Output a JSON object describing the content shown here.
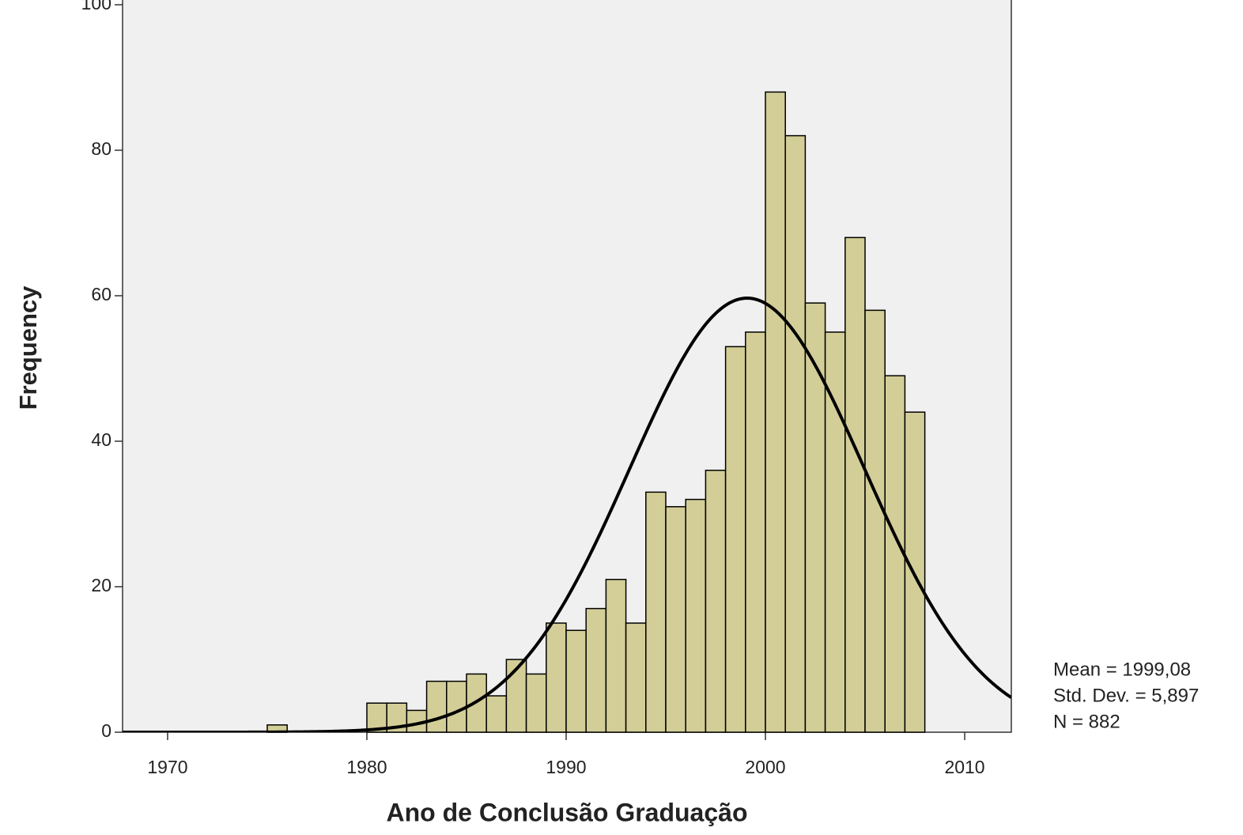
{
  "chart_data": {
    "type": "histogram",
    "xlabel": "Ano de Conclusão Graduação",
    "ylabel": "Frequency",
    "bins": [
      1975,
      1976,
      1977,
      1978,
      1979,
      1980,
      1981,
      1982,
      1983,
      1984,
      1985,
      1986,
      1987,
      1988,
      1989,
      1990,
      1991,
      1992,
      1993,
      1994,
      1995,
      1996,
      1997,
      1998,
      1999,
      2000,
      2001,
      2002,
      2003,
      2004,
      2005,
      2006,
      2007,
      2008
    ],
    "counts": [
      1,
      0,
      0,
      0,
      0,
      4,
      4,
      3,
      7,
      7,
      8,
      5,
      10,
      8,
      15,
      14,
      17,
      21,
      15,
      33,
      31,
      32,
      36,
      53,
      55,
      88,
      82,
      59,
      55,
      68,
      58,
      49,
      44
    ],
    "color": "#d3ce97",
    "xlim": [
      1967.74,
      2012.34
    ],
    "xticks": [
      1970,
      1980,
      1990,
      2000,
      2010
    ],
    "ylim": [
      0,
      100
    ],
    "yticks": [
      0,
      20,
      40,
      60,
      80,
      100
    ],
    "normal_curve": {
      "mean": 1999.08,
      "sd": 5.897,
      "n": 882
    },
    "annotations": [
      "Mean = 1999,08",
      "Std. Dev. = 5,897",
      "N = 882"
    ]
  }
}
